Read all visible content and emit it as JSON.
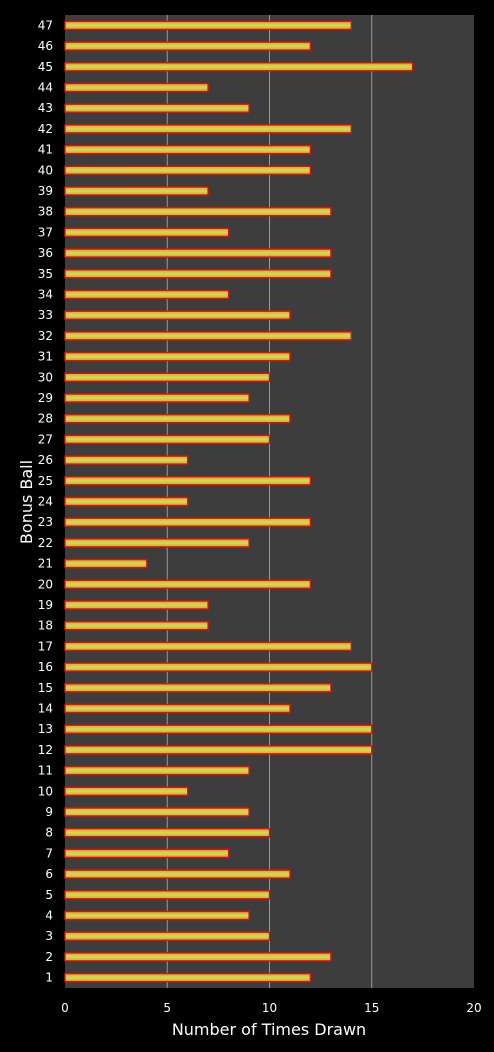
{
  "chart_data": {
    "type": "bar",
    "orientation": "horizontal",
    "title": "",
    "xlabel": "Number of Times Drawn",
    "ylabel": "Bonus Ball",
    "xlim": [
      0,
      20
    ],
    "x_ticks": [
      "0",
      "5",
      "10",
      "15",
      "20"
    ],
    "grid": true,
    "categories": [
      "1",
      "2",
      "3",
      "4",
      "5",
      "6",
      "7",
      "8",
      "9",
      "10",
      "11",
      "12",
      "13",
      "14",
      "15",
      "16",
      "17",
      "18",
      "19",
      "20",
      "21",
      "22",
      "23",
      "24",
      "25",
      "26",
      "27",
      "28",
      "29",
      "30",
      "31",
      "32",
      "33",
      "34",
      "35",
      "36",
      "37",
      "38",
      "39",
      "40",
      "41",
      "42",
      "43",
      "44",
      "45",
      "46",
      "47"
    ],
    "values": [
      12,
      13,
      10,
      9,
      10,
      11,
      8,
      10,
      9,
      6,
      9,
      15,
      15,
      11,
      13,
      15,
      14,
      7,
      7,
      12,
      4,
      9,
      12,
      6,
      12,
      6,
      10,
      11,
      9,
      10,
      11,
      14,
      11,
      8,
      13,
      13,
      8,
      13,
      7,
      12,
      12,
      14,
      9,
      7,
      17,
      12,
      14
    ],
    "colors": {
      "background": "#000000",
      "plot_area": "#3d3d3d",
      "gridline": "#9a9a9a",
      "bar_border": "#e01010",
      "bar_fill_center": "#c8e05a",
      "bar_fill_edge": "#e8a020",
      "text": "#ffffff"
    }
  }
}
